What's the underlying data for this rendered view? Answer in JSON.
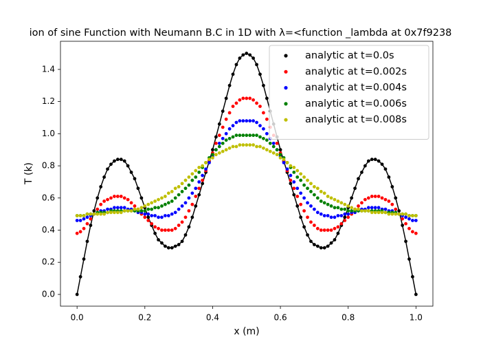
{
  "chart_data": {
    "type": "line",
    "markers": true,
    "title": "ion of sine Function with Neumann B.C in 1D with λ=<function _lambda at 0x7f9238",
    "x_label": "x (m)",
    "y_label": "T (k)",
    "x": [
      0,
      0.01,
      0.02,
      0.03,
      0.04,
      0.05,
      0.06,
      0.07,
      0.08,
      0.09,
      0.1,
      0.11,
      0.12,
      0.13,
      0.14,
      0.15,
      0.16,
      0.17,
      0.18,
      0.19,
      0.2,
      0.21,
      0.22,
      0.23,
      0.24,
      0.25,
      0.26,
      0.27,
      0.28,
      0.29,
      0.3,
      0.31,
      0.32,
      0.33,
      0.34,
      0.35,
      0.36,
      0.37,
      0.38,
      0.39,
      0.4,
      0.41,
      0.42,
      0.43,
      0.44,
      0.45,
      0.46,
      0.47,
      0.48,
      0.49,
      0.5,
      0.51,
      0.52,
      0.53,
      0.54,
      0.55,
      0.56,
      0.57,
      0.58,
      0.59,
      0.6,
      0.61,
      0.62,
      0.63,
      0.64,
      0.65,
      0.66,
      0.67,
      0.68,
      0.69,
      0.7,
      0.71,
      0.72,
      0.73,
      0.74,
      0.75,
      0.76,
      0.77,
      0.78,
      0.79,
      0.8,
      0.81,
      0.82,
      0.83,
      0.84,
      0.85,
      0.86,
      0.87,
      0.88,
      0.89,
      0.9,
      0.91,
      0.92,
      0.93,
      0.94,
      0.95,
      0.96,
      0.97,
      0.98,
      0.99,
      1
    ],
    "series": [
      {
        "name": "analytic at t=0.0s",
        "color": "#000000",
        "line": true,
        "values": [
          0,
          0.11,
          0.22,
          0.33,
          0.43,
          0.52,
          0.6,
          0.67,
          0.73,
          0.78,
          0.81,
          0.83,
          0.84,
          0.84,
          0.83,
          0.8,
          0.76,
          0.72,
          0.66,
          0.6,
          0.54,
          0.48,
          0.43,
          0.38,
          0.34,
          0.32,
          0.3,
          0.29,
          0.29,
          0.3,
          0.31,
          0.33,
          0.37,
          0.42,
          0.48,
          0.55,
          0.62,
          0.69,
          0.76,
          0.83,
          0.9,
          0.98,
          1.06,
          1.14,
          1.22,
          1.3,
          1.37,
          1.43,
          1.47,
          1.49,
          1.5,
          1.49,
          1.47,
          1.43,
          1.37,
          1.3,
          1.22,
          1.14,
          1.06,
          0.98,
          0.9,
          0.83,
          0.76,
          0.69,
          0.62,
          0.55,
          0.48,
          0.42,
          0.37,
          0.33,
          0.31,
          0.3,
          0.29,
          0.29,
          0.3,
          0.32,
          0.34,
          0.38,
          0.43,
          0.48,
          0.54,
          0.6,
          0.66,
          0.72,
          0.76,
          0.8,
          0.83,
          0.84,
          0.84,
          0.83,
          0.81,
          0.78,
          0.73,
          0.67,
          0.6,
          0.52,
          0.43,
          0.33,
          0.22,
          0.11,
          0
        ]
      },
      {
        "name": "analytic at t=0.002s",
        "color": "#ff0000",
        "line": false,
        "values": [
          0.38,
          0.39,
          0.41,
          0.44,
          0.47,
          0.5,
          0.53,
          0.56,
          0.58,
          0.59,
          0.6,
          0.61,
          0.61,
          0.61,
          0.6,
          0.59,
          0.57,
          0.55,
          0.53,
          0.5,
          0.48,
          0.46,
          0.44,
          0.42,
          0.41,
          0.4,
          0.4,
          0.4,
          0.4,
          0.41,
          0.43,
          0.45,
          0.48,
          0.52,
          0.56,
          0.61,
          0.66,
          0.71,
          0.77,
          0.83,
          0.88,
          0.94,
          0.99,
          1.04,
          1.09,
          1.13,
          1.17,
          1.19,
          1.21,
          1.22,
          1.22,
          1.22,
          1.21,
          1.19,
          1.17,
          1.13,
          1.09,
          1.04,
          0.99,
          0.94,
          0.88,
          0.83,
          0.77,
          0.71,
          0.66,
          0.61,
          0.56,
          0.52,
          0.48,
          0.45,
          0.43,
          0.41,
          0.4,
          0.4,
          0.4,
          0.4,
          0.41,
          0.42,
          0.44,
          0.46,
          0.48,
          0.5,
          0.53,
          0.55,
          0.57,
          0.59,
          0.6,
          0.61,
          0.61,
          0.61,
          0.6,
          0.59,
          0.58,
          0.56,
          0.53,
          0.5,
          0.47,
          0.44,
          0.41,
          0.39,
          0.38
        ]
      },
      {
        "name": "analytic at t=0.004s",
        "color": "#0000ff",
        "line": false,
        "values": [
          0.46,
          0.46,
          0.47,
          0.48,
          0.49,
          0.5,
          0.51,
          0.52,
          0.52,
          0.53,
          0.53,
          0.54,
          0.54,
          0.54,
          0.54,
          0.53,
          0.53,
          0.52,
          0.51,
          0.51,
          0.5,
          0.5,
          0.49,
          0.49,
          0.48,
          0.48,
          0.49,
          0.49,
          0.5,
          0.51,
          0.53,
          0.55,
          0.57,
          0.6,
          0.63,
          0.66,
          0.7,
          0.74,
          0.78,
          0.82,
          0.86,
          0.9,
          0.94,
          0.97,
          1.0,
          1.03,
          1.05,
          1.07,
          1.08,
          1.08,
          1.08,
          1.08,
          1.08,
          1.07,
          1.05,
          1.03,
          1.0,
          0.97,
          0.94,
          0.9,
          0.86,
          0.82,
          0.78,
          0.74,
          0.7,
          0.66,
          0.63,
          0.6,
          0.57,
          0.55,
          0.53,
          0.51,
          0.5,
          0.49,
          0.49,
          0.48,
          0.48,
          0.49,
          0.49,
          0.5,
          0.5,
          0.51,
          0.51,
          0.52,
          0.53,
          0.53,
          0.54,
          0.54,
          0.54,
          0.54,
          0.53,
          0.53,
          0.52,
          0.52,
          0.51,
          0.5,
          0.49,
          0.48,
          0.47,
          0.46,
          0.46
        ]
      },
      {
        "name": "analytic at t=0.006s",
        "color": "#008000",
        "line": false,
        "values": [
          0.49,
          0.49,
          0.49,
          0.5,
          0.5,
          0.5,
          0.51,
          0.51,
          0.51,
          0.51,
          0.52,
          0.52,
          0.52,
          0.52,
          0.52,
          0.52,
          0.52,
          0.52,
          0.52,
          0.52,
          0.52,
          0.53,
          0.53,
          0.54,
          0.54,
          0.55,
          0.56,
          0.57,
          0.58,
          0.6,
          0.62,
          0.64,
          0.66,
          0.68,
          0.71,
          0.73,
          0.76,
          0.79,
          0.82,
          0.85,
          0.87,
          0.9,
          0.92,
          0.94,
          0.96,
          0.97,
          0.98,
          0.99,
          0.99,
          0.99,
          0.99,
          0.99,
          0.99,
          0.99,
          0.98,
          0.97,
          0.96,
          0.94,
          0.92,
          0.9,
          0.87,
          0.85,
          0.82,
          0.79,
          0.76,
          0.73,
          0.71,
          0.68,
          0.66,
          0.64,
          0.62,
          0.6,
          0.58,
          0.57,
          0.56,
          0.55,
          0.54,
          0.54,
          0.53,
          0.53,
          0.52,
          0.52,
          0.52,
          0.52,
          0.52,
          0.52,
          0.52,
          0.52,
          0.52,
          0.52,
          0.52,
          0.51,
          0.51,
          0.51,
          0.51,
          0.5,
          0.5,
          0.5,
          0.49,
          0.49,
          0.49
        ]
      },
      {
        "name": "analytic at t=0.008s",
        "color": "#bfbf00",
        "line": false,
        "values": [
          0.49,
          0.49,
          0.49,
          0.5,
          0.5,
          0.5,
          0.5,
          0.5,
          0.5,
          0.51,
          0.51,
          0.51,
          0.51,
          0.51,
          0.52,
          0.52,
          0.52,
          0.53,
          0.53,
          0.54,
          0.55,
          0.56,
          0.57,
          0.58,
          0.59,
          0.6,
          0.61,
          0.63,
          0.64,
          0.66,
          0.67,
          0.69,
          0.71,
          0.73,
          0.75,
          0.77,
          0.79,
          0.8,
          0.82,
          0.84,
          0.85,
          0.87,
          0.88,
          0.89,
          0.9,
          0.91,
          0.92,
          0.92,
          0.93,
          0.93,
          0.93,
          0.93,
          0.93,
          0.92,
          0.92,
          0.91,
          0.9,
          0.89,
          0.88,
          0.87,
          0.85,
          0.84,
          0.82,
          0.8,
          0.79,
          0.77,
          0.75,
          0.73,
          0.71,
          0.69,
          0.67,
          0.66,
          0.64,
          0.63,
          0.61,
          0.6,
          0.59,
          0.58,
          0.57,
          0.56,
          0.55,
          0.54,
          0.53,
          0.53,
          0.52,
          0.52,
          0.52,
          0.51,
          0.51,
          0.51,
          0.51,
          0.51,
          0.5,
          0.5,
          0.5,
          0.5,
          0.5,
          0.5,
          0.49,
          0.49,
          0.49
        ]
      }
    ],
    "xlim": [
      -0.049,
      1.05
    ],
    "xticks": [
      {
        "value": 0,
        "label": "0.0"
      },
      0.2,
      0.4,
      0.6,
      0.8,
      {
        "value": 1,
        "label": "1.0"
      }
    ],
    "ylim": [
      -0.073,
      1.575
    ],
    "yticks": [
      {
        "value": 0,
        "label": "0.0"
      },
      0.2,
      0.4,
      0.6,
      0.8,
      {
        "value": 1,
        "label": "1.0"
      },
      1.2,
      1.4
    ],
    "grid": false,
    "legend": "upper right"
  }
}
